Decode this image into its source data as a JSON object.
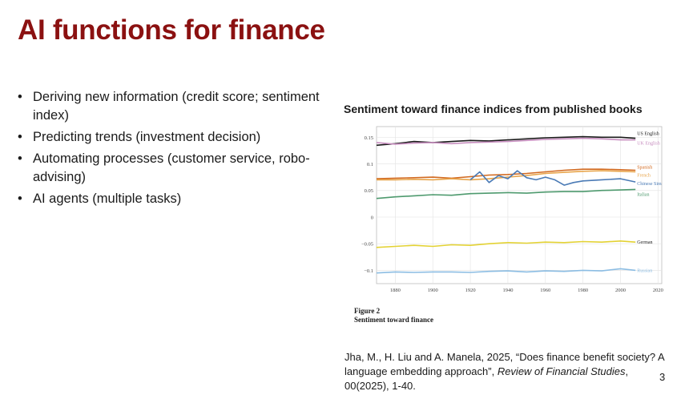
{
  "slide": {
    "title": "AI functions for finance",
    "bullets": [
      "Deriving new information (credit score; sentiment index)",
      "Predicting trends (investment decision)",
      "Automating processes (customer service, robo-advising)",
      "AI agents (multiple tasks)"
    ],
    "chart_heading": "Sentiment toward finance indices from published books",
    "figure_caption": {
      "label": "Figure 2",
      "text": "Sentiment toward finance"
    },
    "citation": {
      "before": "Jha, M., H. Liu and A. Manela, 2025, “Does finance benefit society? A language embedding approach”, ",
      "journal": "Review of Financial Studies",
      "after": ", 00(2025), 1-40."
    },
    "page_number": "3"
  },
  "chart_data": {
    "type": "line",
    "title": "",
    "xlabel": "",
    "ylabel": "",
    "xlim": [
      1870,
      2022
    ],
    "ylim": [
      -0.125,
      0.17
    ],
    "xticks": [
      1880,
      1900,
      1920,
      1940,
      1960,
      1980,
      2000,
      2020
    ],
    "yticks": [
      0.15,
      0.1,
      0.05,
      0,
      -0.05,
      -0.1
    ],
    "ytick_labels": [
      "0.15",
      "0.1",
      "0.05",
      "0",
      "−0.05",
      "−0.1"
    ],
    "grid": true,
    "legend": "inline labels at right end of each line",
    "series": [
      {
        "name": "US English",
        "color": "#1a1a1a",
        "x": [
          1870,
          1880,
          1890,
          1900,
          1910,
          1920,
          1930,
          1940,
          1950,
          1960,
          1970,
          1980,
          1990,
          2000,
          2008
        ],
        "y": [
          0.135,
          0.138,
          0.142,
          0.14,
          0.142,
          0.144,
          0.143,
          0.145,
          0.147,
          0.149,
          0.15,
          0.151,
          0.15,
          0.15,
          0.148
        ]
      },
      {
        "name": "UK English",
        "color": "#c88fc0",
        "x": [
          1870,
          1880,
          1890,
          1900,
          1910,
          1920,
          1930,
          1940,
          1950,
          1960,
          1970,
          1980,
          1990,
          2000,
          2008
        ],
        "y": [
          0.14,
          0.137,
          0.139,
          0.14,
          0.138,
          0.14,
          0.141,
          0.142,
          0.144,
          0.146,
          0.147,
          0.148,
          0.147,
          0.145,
          0.145
        ]
      },
      {
        "name": "Spanish",
        "color": "#d2691e",
        "x": [
          1870,
          1880,
          1890,
          1900,
          1910,
          1920,
          1930,
          1940,
          1950,
          1960,
          1970,
          1980,
          1990,
          2000,
          2008
        ],
        "y": [
          0.072,
          0.073,
          0.074,
          0.075,
          0.073,
          0.076,
          0.079,
          0.08,
          0.082,
          0.085,
          0.088,
          0.09,
          0.09,
          0.089,
          0.088
        ]
      },
      {
        "name": "French",
        "color": "#e8a54b",
        "x": [
          1870,
          1880,
          1890,
          1900,
          1910,
          1920,
          1930,
          1940,
          1950,
          1960,
          1970,
          1980,
          1990,
          2000,
          2008
        ],
        "y": [
          0.07,
          0.07,
          0.071,
          0.07,
          0.072,
          0.07,
          0.072,
          0.075,
          0.078,
          0.082,
          0.084,
          0.086,
          0.087,
          0.086,
          0.085
        ]
      },
      {
        "name": "Chinese Sim",
        "color": "#4a7ab5",
        "x": [
          1920,
          1925,
          1930,
          1935,
          1940,
          1945,
          1950,
          1955,
          1960,
          1965,
          1970,
          1975,
          1980,
          1990,
          2000,
          2008
        ],
        "y": [
          0.07,
          0.085,
          0.065,
          0.078,
          0.072,
          0.087,
          0.074,
          0.07,
          0.075,
          0.07,
          0.06,
          0.065,
          0.068,
          0.07,
          0.072,
          0.066
        ]
      },
      {
        "name": "Italian",
        "color": "#4e9a6e",
        "x": [
          1870,
          1880,
          1890,
          1900,
          1910,
          1920,
          1930,
          1940,
          1950,
          1960,
          1970,
          1980,
          1990,
          2000,
          2008
        ],
        "y": [
          0.035,
          0.038,
          0.04,
          0.042,
          0.041,
          0.044,
          0.045,
          0.046,
          0.045,
          0.047,
          0.048,
          0.048,
          0.05,
          0.051,
          0.052
        ]
      },
      {
        "name": "German",
        "color": "#e3d234",
        "x": [
          1870,
          1880,
          1890,
          1900,
          1910,
          1920,
          1930,
          1940,
          1950,
          1960,
          1970,
          1980,
          1990,
          2000,
          2008
        ],
        "y": [
          -0.057,
          -0.055,
          -0.053,
          -0.055,
          -0.052,
          -0.053,
          -0.05,
          -0.048,
          -0.049,
          -0.047,
          -0.048,
          -0.046,
          -0.047,
          -0.045,
          -0.047
        ]
      },
      {
        "name": "Russian",
        "color": "#8cbde3",
        "x": [
          1870,
          1880,
          1890,
          1900,
          1910,
          1920,
          1930,
          1940,
          1950,
          1960,
          1970,
          1980,
          1990,
          2000,
          2008
        ],
        "y": [
          -0.105,
          -0.103,
          -0.104,
          -0.103,
          -0.103,
          -0.104,
          -0.102,
          -0.101,
          -0.103,
          -0.101,
          -0.102,
          -0.1,
          -0.101,
          -0.097,
          -0.1
        ]
      }
    ]
  }
}
